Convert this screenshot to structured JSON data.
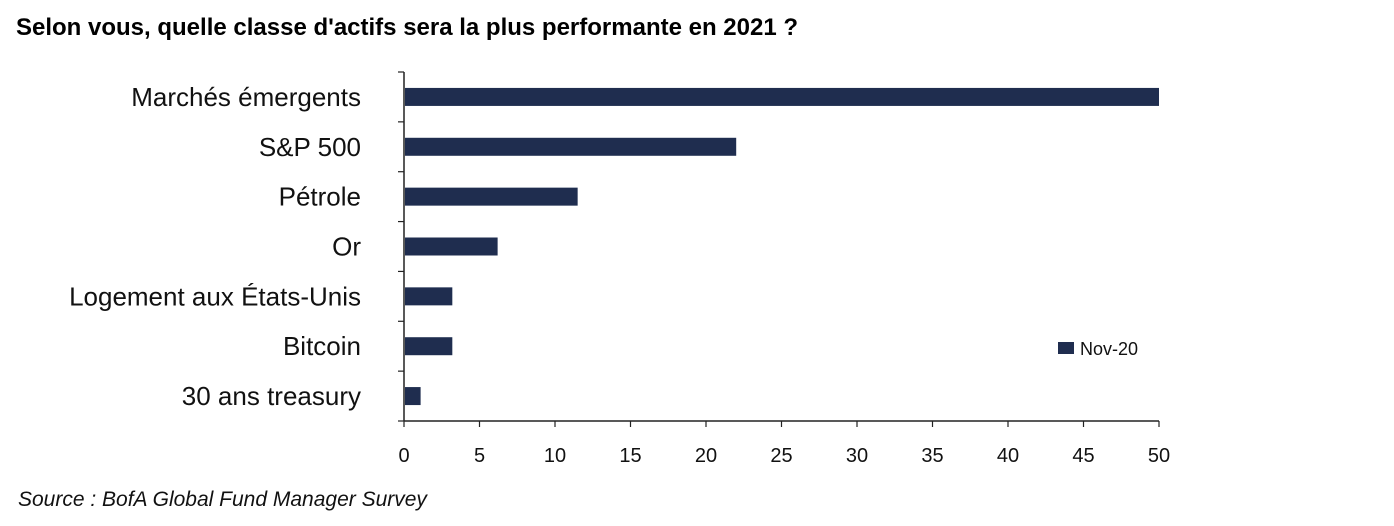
{
  "title": "Selon vous, quelle classe d'actifs sera la plus performante en 2021 ?",
  "source": "Source : BofA Global Fund Manager Survey",
  "colors": {
    "bar": "#1f2d4f",
    "axis": "#222222",
    "text": "#111111"
  },
  "chart_data": {
    "type": "bar",
    "orientation": "horizontal",
    "categories": [
      "Marchés émergents",
      "S&P 500",
      "Pétrole",
      "Or",
      "Logement aux États-Unis",
      "Bitcoin",
      "30 ans treasury"
    ],
    "series": [
      {
        "name": "Nov-20",
        "values": [
          50,
          22,
          11.5,
          6.2,
          3.2,
          3.2,
          1.1
        ]
      }
    ],
    "xlim": [
      0,
      50
    ],
    "xticks": [
      0,
      5,
      10,
      15,
      20,
      25,
      30,
      35,
      40,
      45,
      50
    ],
    "grid": false,
    "legend": "right",
    "legend_label": "Nov-20"
  }
}
